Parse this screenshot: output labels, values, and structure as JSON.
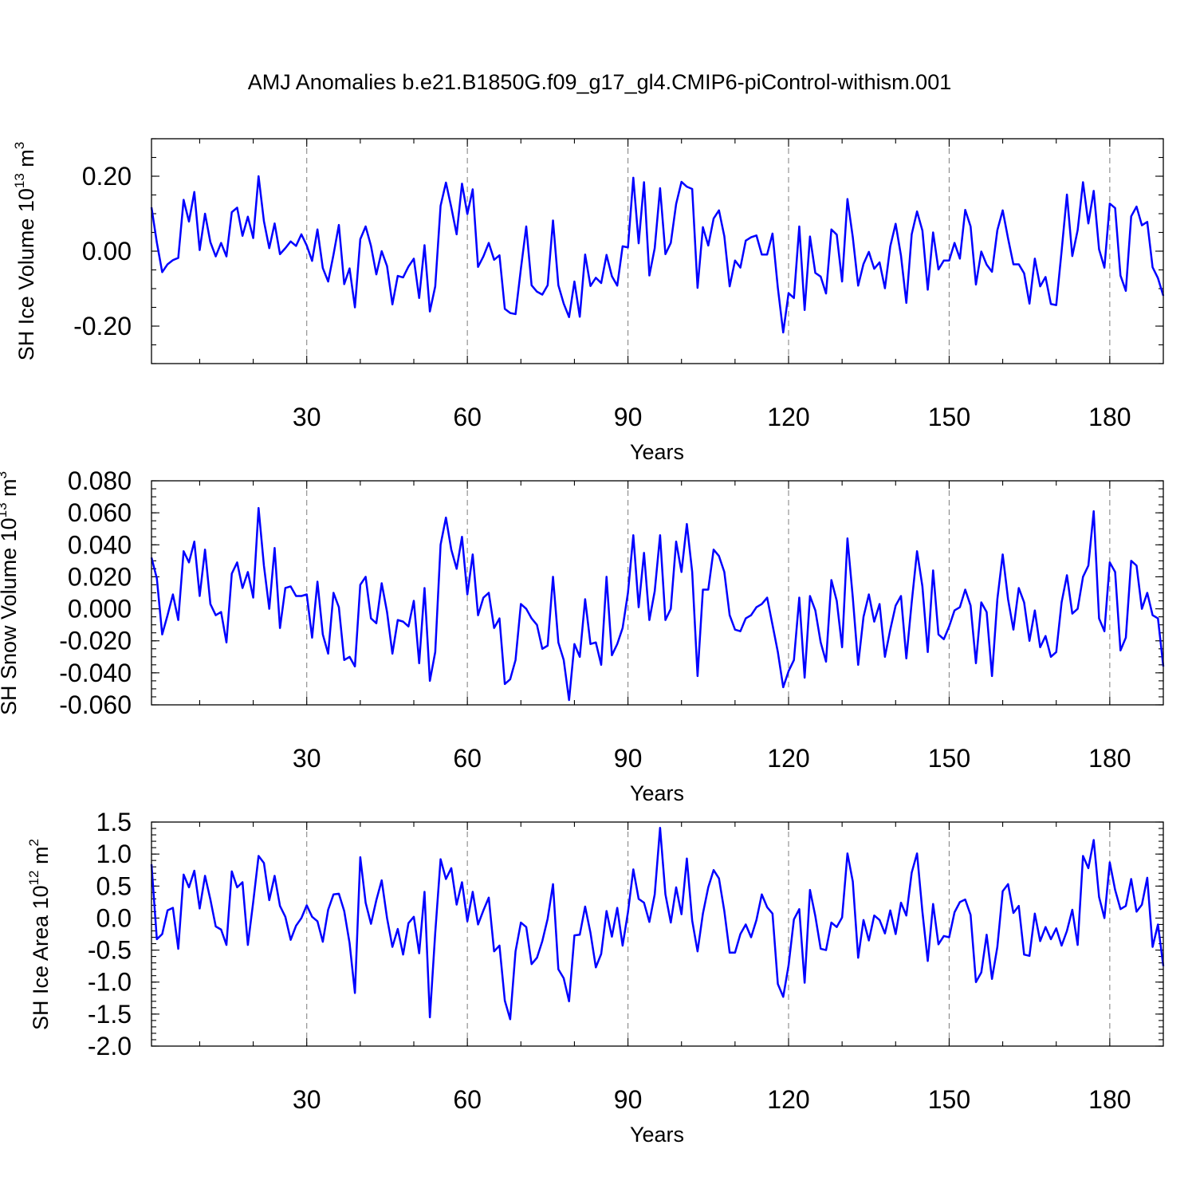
{
  "title": "AMJ Anomalies b.e21.B1850G.f09_g17_gl4.CMIP6-piControl-withism.001",
  "line_color": "#0000ff",
  "chart_data": [
    {
      "type": "line",
      "title": "AMJ Anomalies b.e21.B1850G.f09_g17_gl4.CMIP6-piControl-withism.001",
      "xlabel": "Years",
      "ylabel_base": "SH Ice Volume 10",
      "ylabel_exp": "13",
      "ylabel_unit": "m",
      "ylabel_unit_exp": "3",
      "xlim": [
        1,
        190
      ],
      "ylim": [
        -0.3,
        0.3
      ],
      "xticks": [
        30,
        60,
        90,
        120,
        150,
        180
      ],
      "xtick_labels": [
        "30",
        "60",
        "90",
        "120",
        "150",
        "180"
      ],
      "yticks": [
        -0.2,
        0.0,
        0.2
      ],
      "ytick_labels": [
        "-0.20",
        "0.00",
        "0.20"
      ],
      "grid": "vertical dashed at x ticks",
      "series": [
        {
          "name": "SH Ice Volume",
          "x_start": 1,
          "values": [
            0.117,
            0.023,
            -0.056,
            -0.035,
            -0.024,
            -0.018,
            0.137,
            0.079,
            0.158,
            0.003,
            0.1,
            0.024,
            -0.014,
            0.022,
            -0.014,
            0.104,
            0.116,
            0.041,
            0.092,
            0.035,
            0.2,
            0.08,
            0.008,
            0.074,
            -0.008,
            0.008,
            0.026,
            0.014,
            0.045,
            0.015,
            -0.026,
            0.058,
            -0.045,
            -0.081,
            -0.009,
            0.07,
            -0.088,
            -0.046,
            -0.15,
            0.032,
            0.066,
            0.014,
            -0.062,
            0.0,
            -0.04,
            -0.142,
            -0.066,
            -0.07,
            -0.041,
            -0.02,
            -0.125,
            0.016,
            -0.161,
            -0.094,
            0.121,
            0.183,
            0.117,
            0.045,
            0.18,
            0.099,
            0.165,
            -0.042,
            -0.014,
            0.022,
            -0.023,
            -0.011,
            -0.154,
            -0.165,
            -0.168,
            -0.047,
            0.066,
            -0.091,
            -0.108,
            -0.116,
            -0.091,
            0.082,
            -0.091,
            -0.14,
            -0.176,
            -0.081,
            -0.175,
            -0.009,
            -0.093,
            -0.071,
            -0.085,
            -0.01,
            -0.067,
            -0.092,
            0.013,
            0.01,
            0.196,
            0.021,
            0.184,
            -0.065,
            0.008,
            0.168,
            -0.008,
            0.022,
            0.126,
            0.185,
            0.172,
            0.166,
            -0.098,
            0.064,
            0.015,
            0.087,
            0.109,
            0.04,
            -0.094,
            -0.025,
            -0.044,
            0.028,
            0.037,
            0.042,
            -0.009,
            -0.009,
            0.047,
            -0.098,
            -0.217,
            -0.112,
            -0.125,
            0.066,
            -0.157,
            0.039,
            -0.058,
            -0.068,
            -0.113,
            0.058,
            0.044,
            -0.081,
            0.139,
            0.037,
            -0.092,
            -0.034,
            -0.002,
            -0.047,
            -0.03,
            -0.099,
            0.013,
            0.073,
            -0.012,
            -0.138,
            0.045,
            0.106,
            0.055,
            -0.103,
            0.05,
            -0.049,
            -0.025,
            -0.025,
            0.022,
            -0.02,
            0.11,
            0.066,
            -0.089,
            -0.001,
            -0.036,
            -0.055,
            0.056,
            0.109,
            0.034,
            -0.035,
            -0.035,
            -0.059,
            -0.14,
            -0.02,
            -0.094,
            -0.069,
            -0.141,
            -0.144,
            0.0,
            0.151,
            -0.013,
            0.056,
            0.184,
            0.074,
            0.161,
            0.005,
            -0.044,
            0.127,
            0.115,
            -0.065,
            -0.106,
            0.093,
            0.119,
            0.069,
            0.078,
            -0.043,
            -0.072,
            -0.119
          ]
        }
      ]
    },
    {
      "type": "line",
      "xlabel": "Years",
      "ylabel_base": "SH Snow Volume 10",
      "ylabel_exp": "13",
      "ylabel_unit": "m",
      "ylabel_unit_exp": "3",
      "xlim": [
        1,
        190
      ],
      "ylim": [
        -0.06,
        0.08
      ],
      "xticks": [
        30,
        60,
        90,
        120,
        150,
        180
      ],
      "xtick_labels": [
        "30",
        "60",
        "90",
        "120",
        "150",
        "180"
      ],
      "yticks": [
        -0.06,
        -0.04,
        -0.02,
        0.0,
        0.02,
        0.04,
        0.06,
        0.08
      ],
      "ytick_labels": [
        "-0.060",
        "-0.040",
        "-0.020",
        "0.000",
        "0.020",
        "0.040",
        "0.060",
        "0.080"
      ],
      "grid": "vertical dashed at x ticks",
      "series": [
        {
          "name": "SH Snow Volume",
          "x_start": 1,
          "values": [
            0.032,
            0.019,
            -0.016,
            -0.004,
            0.009,
            -0.007,
            0.036,
            0.029,
            0.042,
            0.008,
            0.037,
            0.003,
            -0.004,
            -0.002,
            -0.021,
            0.022,
            0.029,
            0.013,
            0.023,
            0.007,
            0.063,
            0.027,
            0.0,
            0.038,
            -0.012,
            0.013,
            0.014,
            0.008,
            0.008,
            0.009,
            -0.018,
            0.017,
            -0.016,
            -0.028,
            0.01,
            0.001,
            -0.032,
            -0.03,
            -0.036,
            0.015,
            0.02,
            -0.006,
            -0.009,
            0.016,
            -0.002,
            -0.028,
            -0.007,
            -0.008,
            -0.011,
            0.005,
            -0.034,
            0.013,
            -0.045,
            -0.027,
            0.04,
            0.057,
            0.037,
            0.025,
            0.045,
            0.009,
            0.034,
            -0.004,
            0.007,
            0.01,
            -0.012,
            -0.006,
            -0.047,
            -0.044,
            -0.032,
            0.003,
            0.0,
            -0.006,
            -0.01,
            -0.025,
            -0.023,
            0.02,
            -0.021,
            -0.032,
            -0.057,
            -0.022,
            -0.03,
            0.006,
            -0.022,
            -0.021,
            -0.035,
            0.02,
            -0.029,
            -0.022,
            -0.012,
            0.01,
            0.046,
            0.001,
            0.035,
            -0.007,
            0.011,
            0.046,
            -0.007,
            0.0,
            0.042,
            0.023,
            0.053,
            0.023,
            -0.042,
            0.012,
            0.012,
            0.037,
            0.033,
            0.023,
            -0.004,
            -0.013,
            -0.014,
            -0.006,
            -0.004,
            0.001,
            0.003,
            0.007,
            -0.01,
            -0.027,
            -0.049,
            -0.039,
            -0.032,
            0.007,
            -0.043,
            0.008,
            -0.001,
            -0.021,
            -0.033,
            0.018,
            0.005,
            -0.024,
            0.044,
            0.007,
            -0.035,
            -0.005,
            0.009,
            -0.008,
            0.003,
            -0.03,
            -0.013,
            0.002,
            0.008,
            -0.031,
            0.004,
            0.036,
            0.014,
            -0.027,
            0.024,
            -0.016,
            -0.019,
            -0.011,
            -0.001,
            0.001,
            0.012,
            0.002,
            -0.034,
            0.004,
            -0.002,
            -0.042,
            0.006,
            0.034,
            0.006,
            -0.013,
            0.013,
            0.004,
            -0.02,
            -0.001,
            -0.024,
            -0.017,
            -0.03,
            -0.027,
            0.004,
            0.021,
            -0.003,
            0.0,
            0.02,
            0.027,
            0.061,
            -0.006,
            -0.014,
            0.029,
            0.023,
            -0.026,
            -0.018,
            0.03,
            0.027,
            0.0,
            0.01,
            -0.004,
            -0.006,
            -0.036
          ]
        }
      ]
    },
    {
      "type": "line",
      "xlabel": "Years",
      "ylabel_base": "SH Ice Area 10",
      "ylabel_exp": "12",
      "ylabel_unit": "m",
      "ylabel_unit_exp": "2",
      "xlim": [
        1,
        190
      ],
      "ylim": [
        -2.0,
        1.5
      ],
      "xticks": [
        30,
        60,
        90,
        120,
        150,
        180
      ],
      "xtick_labels": [
        "30",
        "60",
        "90",
        "120",
        "150",
        "180"
      ],
      "yticks": [
        -2.0,
        -1.5,
        -1.0,
        -0.5,
        0.0,
        0.5,
        1.0,
        1.5
      ],
      "ytick_labels": [
        "-2.0",
        "-1.5",
        "-1.0",
        "-0.5",
        "0.0",
        "0.5",
        "1.0",
        "1.5"
      ],
      "grid": "vertical dashed at x ticks",
      "series": [
        {
          "name": "SH Ice Area",
          "x_start": 1,
          "values": [
            0.84,
            -0.33,
            -0.25,
            0.12,
            0.16,
            -0.48,
            0.68,
            0.48,
            0.74,
            0.15,
            0.66,
            0.29,
            -0.13,
            -0.18,
            -0.42,
            0.73,
            0.48,
            0.56,
            -0.42,
            0.25,
            0.97,
            0.86,
            0.28,
            0.66,
            0.19,
            0.02,
            -0.34,
            -0.12,
            0.0,
            0.2,
            0.02,
            -0.05,
            -0.37,
            0.13,
            0.37,
            0.38,
            0.11,
            -0.39,
            -1.17,
            0.95,
            0.24,
            -0.09,
            0.28,
            0.59,
            0.0,
            -0.45,
            -0.17,
            -0.57,
            -0.08,
            0.02,
            -0.55,
            0.41,
            -1.55,
            -0.23,
            0.92,
            0.61,
            0.78,
            0.21,
            0.56,
            -0.05,
            0.41,
            -0.1,
            0.12,
            0.32,
            -0.52,
            -0.43,
            -1.29,
            -1.58,
            -0.52,
            -0.07,
            -0.14,
            -0.72,
            -0.62,
            -0.36,
            -0.01,
            0.53,
            -0.8,
            -0.94,
            -1.3,
            -0.27,
            -0.26,
            0.18,
            -0.23,
            -0.77,
            -0.56,
            0.11,
            -0.29,
            0.16,
            -0.43,
            0.09,
            0.76,
            0.3,
            0.24,
            -0.06,
            0.37,
            1.41,
            0.37,
            -0.07,
            0.48,
            0.06,
            0.93,
            -0.04,
            -0.52,
            0.07,
            0.48,
            0.75,
            0.62,
            0.11,
            -0.54,
            -0.54,
            -0.25,
            -0.1,
            -0.3,
            -0.03,
            0.37,
            0.17,
            0.07,
            -1.03,
            -1.23,
            -0.74,
            -0.02,
            0.14,
            -1.01,
            0.44,
            0.03,
            -0.48,
            -0.5,
            -0.07,
            -0.14,
            0.01,
            1.01,
            0.57,
            -0.62,
            -0.03,
            -0.35,
            0.04,
            -0.03,
            -0.24,
            0.12,
            -0.25,
            0.24,
            0.04,
            0.71,
            1.01,
            0.1,
            -0.67,
            0.22,
            -0.41,
            -0.28,
            -0.3,
            0.09,
            0.25,
            0.29,
            0.05,
            -1.0,
            -0.85,
            -0.26,
            -0.95,
            -0.45,
            0.42,
            0.53,
            0.08,
            0.19,
            -0.57,
            -0.59,
            0.07,
            -0.36,
            -0.14,
            -0.33,
            -0.16,
            -0.43,
            -0.2,
            0.13,
            -0.42,
            0.97,
            0.78,
            1.22,
            0.33,
            0.0,
            0.87,
            0.44,
            0.14,
            0.19,
            0.61,
            0.1,
            0.21,
            0.63,
            -0.45,
            -0.1,
            -0.75
          ]
        }
      ]
    }
  ]
}
